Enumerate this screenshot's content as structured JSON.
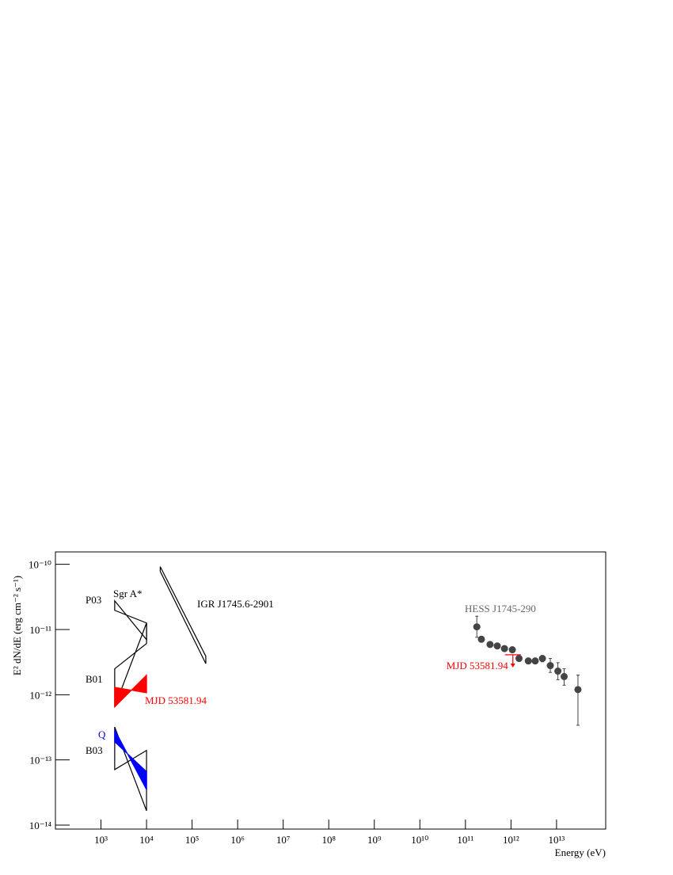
{
  "chart_data": {
    "type": "scatter",
    "x_label": "Energy (eV)",
    "y_label": "E² dN/dE (erg cm⁻² s⁻¹)",
    "xscale": "log",
    "yscale": "log",
    "xlim": [
      100,
      120000000000000.0
    ],
    "ylim": [
      8.7e-15,
      1.55e-10
    ],
    "xticks": [
      {
        "value": 1000.0,
        "label": "10³"
      },
      {
        "value": 10000.0,
        "label": "10⁴"
      },
      {
        "value": 100000.0,
        "label": "10⁵"
      },
      {
        "value": 1000000.0,
        "label": "10⁶"
      },
      {
        "value": 10000000.0,
        "label": "10⁷"
      },
      {
        "value": 100000000.0,
        "label": "10⁸"
      },
      {
        "value": 1000000000.0,
        "label": "10⁹"
      },
      {
        "value": 10000000000.0,
        "label": "10¹⁰"
      },
      {
        "value": 100000000000.0,
        "label": "10¹¹"
      },
      {
        "value": 1000000000000.0,
        "label": "10¹²"
      },
      {
        "value": 10000000000000.0,
        "label": "10¹³"
      }
    ],
    "yticks": [
      {
        "value": 1e-14,
        "label": "10⁻¹⁴"
      },
      {
        "value": 1e-13,
        "label": "10⁻¹³"
      },
      {
        "value": 1e-12,
        "label": "10⁻¹²"
      },
      {
        "value": 1e-11,
        "label": "10⁻¹¹"
      },
      {
        "value": 1e-10,
        "label": "10⁻¹⁰"
      }
    ],
    "series": [
      {
        "name": "HESS J1745-290",
        "color": "#444444",
        "x": [
          178000000000.0,
          224000000000.0,
          347000000000.0,
          500000000000.0,
          720000000000.0,
          1070000000000.0,
          1500000000000.0,
          2400000000000.0,
          3400000000000.0,
          4900000000000.0,
          7300000000000.0,
          10700000000000.0,
          14700000000000.0,
          29500000000000.0
        ],
        "values": [
          1.1e-11,
          7.1e-12,
          5.9e-12,
          5.6e-12,
          5.1e-12,
          4.9e-12,
          3.6e-12,
          3.3e-12,
          3.3e-12,
          3.6e-12,
          2.8e-12,
          2.3e-12,
          1.9e-12,
          1.2e-12
        ],
        "err_low": [
          7.6e-12,
          6.7e-12,
          5.5e-12,
          5.2e-12,
          4.8e-12,
          4.5e-12,
          3.3e-12,
          3e-12,
          3e-12,
          3.2e-12,
          2.2e-12,
          1.7e-12,
          1.4e-12,
          3.4e-13
        ],
        "err_high": [
          1.6e-11,
          7.5e-12,
          6.3e-12,
          6e-12,
          5.4e-12,
          5.3e-12,
          3.9e-12,
          3.6e-12,
          3.6e-12,
          3.9e-12,
          3.6e-12,
          3.1e-12,
          2.5e-12,
          2e-12
        ]
      }
    ],
    "upper_limits": [
      {
        "name": "MJD 53581.94",
        "color": "#ff0000",
        "x": 1100000000000.0,
        "value": 4.1e-12
      }
    ],
    "bowties": [
      {
        "name": "IGR J1745.6-2901",
        "color": "#000000",
        "filled": false,
        "x": [
          20000.0,
          200000.0,
          200000.0,
          20000.0
        ],
        "y": [
          9.2e-11,
          3.9e-12,
          3e-12,
          7.8e-11
        ]
      },
      {
        "name": "P03",
        "color": "#000000",
        "filled": false,
        "x": [
          2000,
          10000,
          10000,
          2000
        ],
        "y": [
          2.76e-11,
          7e-12,
          1.26e-11,
          1.97e-11
        ]
      },
      {
        "name": "B01",
        "color": "#000000",
        "filled": false,
        "x": [
          2000,
          10000,
          10000,
          2000
        ],
        "y": [
          2.5e-12,
          6.1e-12,
          1.26e-11,
          6.5e-13
        ]
      },
      {
        "name": "MJD 53581.94",
        "color": "#ff0000",
        "filled": true,
        "x": [
          2000,
          10000,
          10000,
          2000
        ],
        "y": [
          1.3e-12,
          1.07e-12,
          2e-12,
          6.5e-13
        ]
      },
      {
        "name": "B03",
        "color": "#000000",
        "filled": false,
        "x": [
          2000,
          10000,
          10000,
          2000
        ],
        "y": [
          3.2e-13,
          1.66e-14,
          1.4e-13,
          7.1e-14
        ]
      },
      {
        "name": "Q",
        "color": "#0000ff",
        "filled": true,
        "x": [
          2000,
          10000,
          10000,
          2000
        ],
        "y": [
          2.9e-13,
          3.5e-14,
          6.6e-14,
          1.9e-13
        ]
      }
    ],
    "annotations": [
      "Sgr A*"
    ]
  }
}
